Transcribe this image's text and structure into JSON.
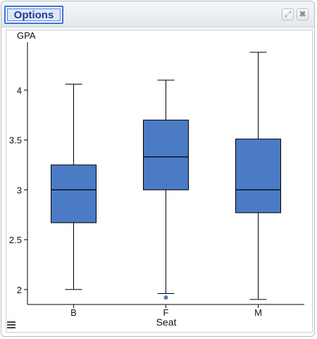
{
  "window": {
    "options_label": "Options",
    "expand_icon": "expand-icon",
    "close_icon": "close-icon",
    "menu_icon": "hamburger-menu-icon"
  },
  "chart_data": {
    "type": "box",
    "ylabel": "GPA",
    "xlabel": "Seat",
    "ylim": [
      1.85,
      4.48
    ],
    "yticks": [
      2,
      2.5,
      3,
      3.5,
      4
    ],
    "ytick_labels": [
      "2",
      "2.5",
      "3",
      "3.5",
      "4"
    ],
    "categories": [
      "B",
      "F",
      "M"
    ],
    "boxes": [
      {
        "category": "B",
        "whisker_low": 2.0,
        "q1": 2.67,
        "median": 3.0,
        "q3": 3.25,
        "whisker_high": 4.06,
        "outliers": []
      },
      {
        "category": "F",
        "whisker_low": 1.96,
        "q1": 3.0,
        "median": 3.33,
        "q3": 3.7,
        "whisker_high": 4.1,
        "outliers": [
          1.92
        ]
      },
      {
        "category": "M",
        "whisker_low": 1.9,
        "q1": 2.77,
        "median": 3.0,
        "q3": 3.51,
        "whisker_high": 4.38,
        "outliers": []
      }
    ],
    "box_color": "#4a7bc4",
    "grid": false
  }
}
